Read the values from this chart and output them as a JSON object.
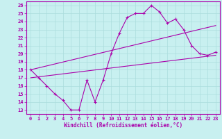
{
  "xlabel": "Windchill (Refroidissement éolien,°C)",
  "bg_color": "#c8f0f0",
  "line_color": "#aa00aa",
  "grid_color": "#aadddd",
  "xlim": [
    -0.5,
    23.5
  ],
  "ylim": [
    12.5,
    26.5
  ],
  "xticks": [
    0,
    1,
    2,
    3,
    4,
    5,
    6,
    7,
    8,
    9,
    10,
    11,
    12,
    13,
    14,
    15,
    16,
    17,
    18,
    19,
    20,
    21,
    22,
    23
  ],
  "yticks": [
    13,
    14,
    15,
    16,
    17,
    18,
    19,
    20,
    21,
    22,
    23,
    24,
    25,
    26
  ],
  "line1_x": [
    0,
    1,
    2,
    3,
    4,
    5,
    6,
    7,
    8,
    9,
    10,
    11,
    12,
    13,
    14,
    15,
    16,
    17,
    18,
    19,
    20,
    21,
    22,
    23
  ],
  "line1_y": [
    18.0,
    17.0,
    16.0,
    15.0,
    14.2,
    13.0,
    13.0,
    16.7,
    14.0,
    16.7,
    20.0,
    22.5,
    24.5,
    25.0,
    25.0,
    26.0,
    25.2,
    23.8,
    24.3,
    23.0,
    21.0,
    20.0,
    19.8,
    20.2
  ],
  "line2_x": [
    0,
    23
  ],
  "line2_y": [
    17.0,
    19.8
  ],
  "line3_x": [
    0,
    23
  ],
  "line3_y": [
    18.0,
    23.5
  ]
}
